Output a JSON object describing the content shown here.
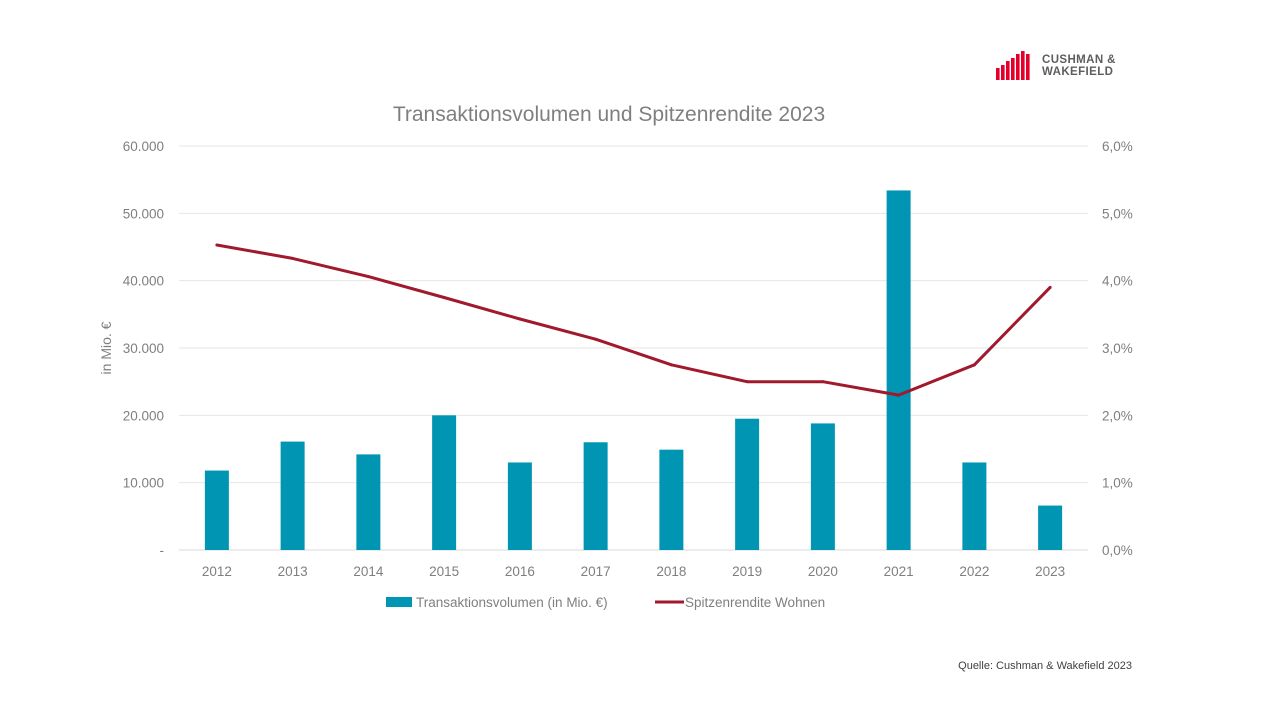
{
  "logo": {
    "line1": "CUSHMAN &",
    "line2": "WAKEFIELD",
    "color": "#e4002b"
  },
  "source": "Quelle: Cushman & Wakefield 2023",
  "colors": {
    "bar": "#0095b3",
    "line": "#a1192d",
    "grid": "#e6e6e6",
    "text": "#7f7f7f"
  },
  "chart_data": {
    "type": "bar",
    "title": "Transaktionsvolumen und Spitzenrendite 2023",
    "xlabel": "",
    "ylabel": "in Mio. €",
    "categories": [
      "2012",
      "2013",
      "2014",
      "2015",
      "2016",
      "2017",
      "2018",
      "2019",
      "2020",
      "2021",
      "2022",
      "2023"
    ],
    "series": [
      {
        "name": "Transaktionsvolumen (in Mio. €)",
        "type": "bar",
        "axis": "left",
        "values": [
          11800,
          16100,
          14200,
          20000,
          13000,
          16000,
          14900,
          19500,
          18800,
          53400,
          13000,
          6600
        ]
      },
      {
        "name": "Spitzenrendite Wohnen",
        "type": "line",
        "axis": "right",
        "values": [
          4.53,
          4.33,
          4.06,
          3.75,
          3.43,
          3.13,
          2.75,
          2.5,
          2.5,
          2.3,
          2.75,
          3.9
        ]
      }
    ],
    "ylim": [
      0,
      60000
    ],
    "ylim_right": [
      0,
      6.0
    ],
    "left_ticks": [
      "-",
      "10.000",
      "20.000",
      "30.000",
      "40.000",
      "50.000",
      "60.000"
    ],
    "right_ticks": [
      "0,0%",
      "1,0%",
      "2,0%",
      "3,0%",
      "4,0%",
      "5,0%",
      "6,0%"
    ],
    "grid": true,
    "legend_position": "bottom"
  }
}
